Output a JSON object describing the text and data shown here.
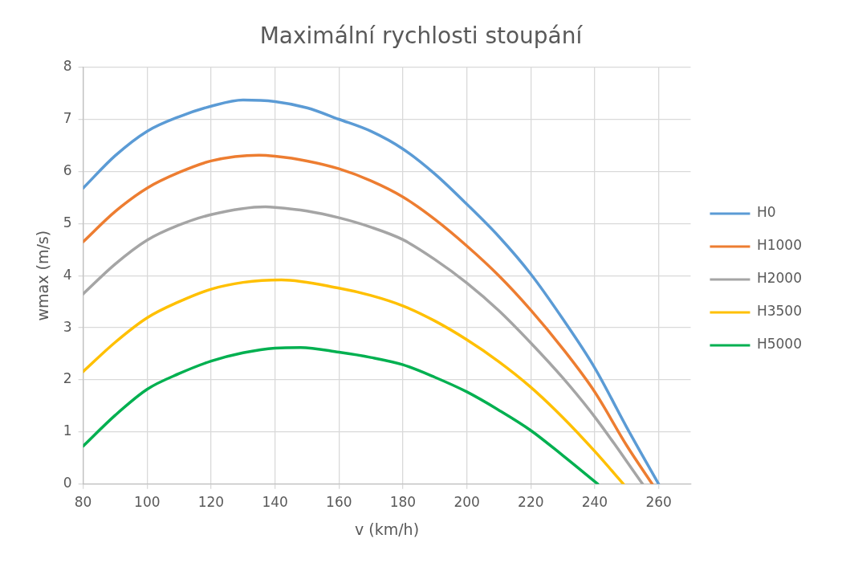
{
  "chart_data": {
    "type": "line",
    "title": "Maximální rychlosti stoupání",
    "xlabel": "v (km/h)",
    "ylabel": "wmax (m/s)",
    "xlim": [
      80,
      270
    ],
    "xticks": [
      80,
      100,
      120,
      140,
      160,
      180,
      200,
      220,
      240,
      260
    ],
    "ylim": [
      0,
      8
    ],
    "yticks": [
      0,
      1,
      2,
      3,
      4,
      5,
      6,
      7,
      8
    ],
    "grid": true,
    "legend": "right",
    "marker": "none",
    "line_style": "solid",
    "series": [
      {
        "name": "H0",
        "color": "#5b9bd5",
        "x": [
          80,
          90,
          100,
          110,
          120,
          130,
          140,
          150,
          160,
          170,
          180,
          190,
          200,
          210,
          220,
          230,
          240,
          250,
          260
        ],
        "values": [
          5.68,
          6.3,
          6.77,
          7.05,
          7.25,
          7.37,
          7.34,
          7.22,
          7.0,
          6.77,
          6.43,
          5.95,
          5.37,
          4.75,
          4.03,
          3.17,
          2.23,
          1.09,
          0
        ]
      },
      {
        "name": "H1000",
        "color": "#ed7d31",
        "x": [
          80,
          90,
          100,
          110,
          120,
          135,
          140,
          150,
          160,
          170,
          180,
          190,
          200,
          210,
          220,
          230,
          240,
          250,
          258
        ],
        "values": [
          4.65,
          5.23,
          5.68,
          5.98,
          6.2,
          6.31,
          6.29,
          6.2,
          6.05,
          5.82,
          5.51,
          5.08,
          4.57,
          4.0,
          3.34,
          2.6,
          1.77,
          0.74,
          0
        ]
      },
      {
        "name": "H2000",
        "color": "#a5a5a5",
        "x": [
          80,
          90,
          100,
          110,
          120,
          137,
          140,
          150,
          160,
          170,
          180,
          190,
          200,
          210,
          220,
          230,
          240,
          255
        ],
        "values": [
          3.65,
          4.22,
          4.68,
          4.97,
          5.17,
          5.32,
          5.31,
          5.24,
          5.11,
          4.93,
          4.69,
          4.31,
          3.86,
          3.33,
          2.71,
          2.04,
          1.29,
          0
        ]
      },
      {
        "name": "H3500",
        "color": "#ffc000",
        "x": [
          80,
          90,
          100,
          110,
          120,
          130,
          142,
          160,
          170,
          180,
          190,
          200,
          210,
          220,
          230,
          240,
          249
        ],
        "values": [
          2.16,
          2.72,
          3.19,
          3.5,
          3.74,
          3.87,
          3.92,
          3.76,
          3.62,
          3.42,
          3.13,
          2.77,
          2.35,
          1.86,
          1.28,
          0.63,
          0
        ]
      },
      {
        "name": "H5000",
        "color": "#00b050",
        "x": [
          80,
          90,
          100,
          110,
          120,
          130,
          140,
          148,
          160,
          170,
          180,
          190,
          200,
          210,
          220,
          230,
          241
        ],
        "values": [
          0.73,
          1.32,
          1.82,
          2.12,
          2.36,
          2.52,
          2.61,
          2.62,
          2.53,
          2.43,
          2.29,
          2.05,
          1.77,
          1.42,
          1.03,
          0.55,
          0
        ]
      }
    ]
  }
}
